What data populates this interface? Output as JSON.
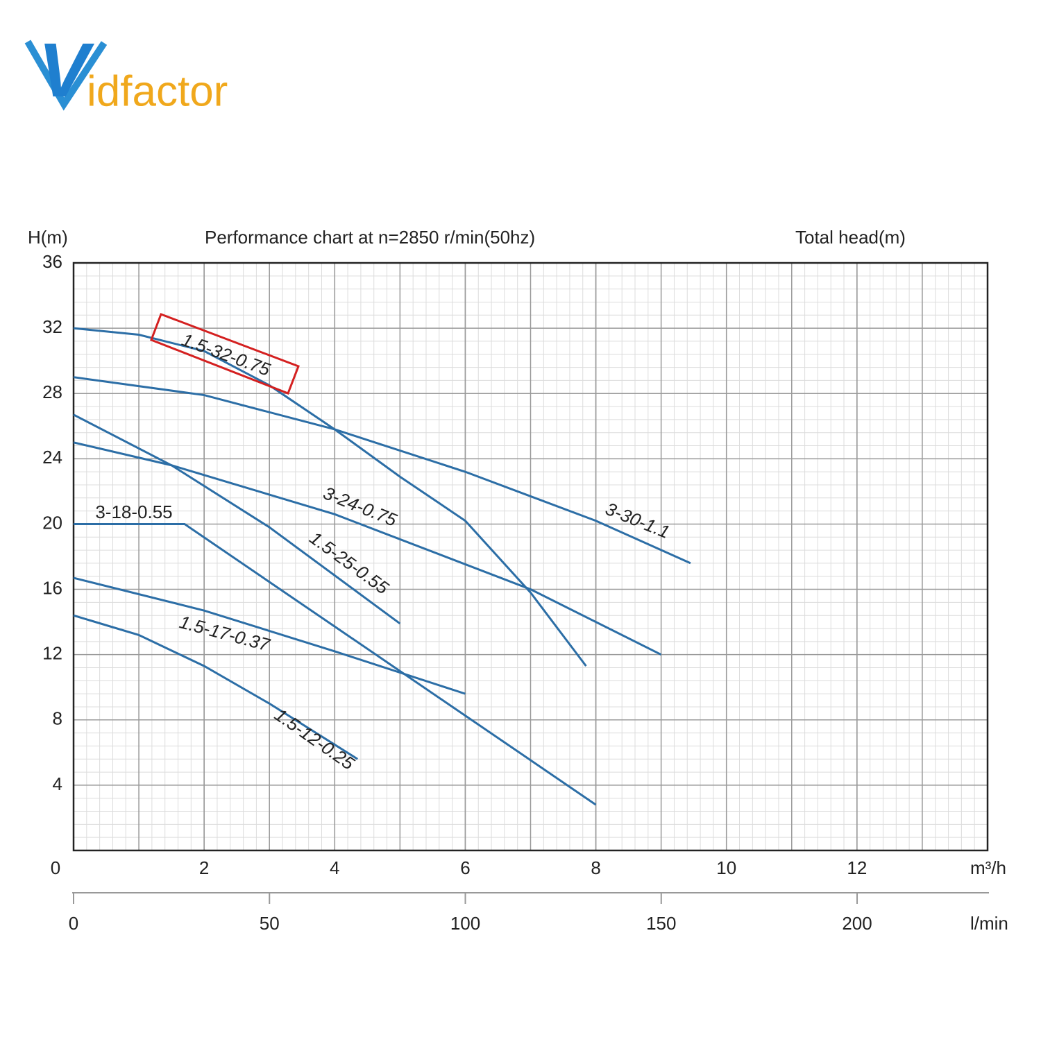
{
  "logo": {
    "initial": "V",
    "rest": "idfactor"
  },
  "chart_data": {
    "type": "line",
    "title": "Performance chart at n=2850 r/min(50hz)",
    "y_label": "H(m)",
    "right_label": "Total head(m)",
    "x_label": "m³/h",
    "x2_label": "l/min",
    "xlim": [
      0,
      14
    ],
    "xticks": [
      0,
      2,
      4,
      6,
      8,
      10,
      12
    ],
    "x2lim": [
      0,
      233.3
    ],
    "x2ticks": [
      0,
      50,
      100,
      150,
      200
    ],
    "ylim": [
      0,
      36
    ],
    "yticks": [
      4,
      8,
      12,
      16,
      20,
      24,
      28,
      32,
      36
    ],
    "grid": true,
    "series": [
      {
        "name": "1.5-32-0.75",
        "color": "#2c6ea6",
        "x": [
          0,
          1,
          2,
          3,
          4,
          5,
          6,
          7,
          7.85
        ],
        "values": [
          32,
          31.6,
          30.6,
          28.5,
          25.8,
          22.9,
          20.2,
          15.8,
          11.3
        ]
      },
      {
        "name": "3-30-1.1",
        "color": "#2c6ea6",
        "x": [
          0,
          2,
          4,
          6,
          8,
          9.45
        ],
        "values": [
          29,
          27.9,
          25.8,
          23.2,
          20.2,
          17.6
        ]
      },
      {
        "name": "3-24-0.75",
        "color": "#2c6ea6",
        "x": [
          0,
          1.5,
          4,
          7,
          9
        ],
        "values": [
          25,
          23.6,
          20.6,
          16,
          12
        ]
      },
      {
        "name": "1.5-25-0.55",
        "color": "#2c6ea6",
        "x": [
          0,
          1.5,
          3,
          5
        ],
        "values": [
          26.7,
          23.6,
          19.8,
          13.9
        ]
      },
      {
        "name": "3-18-0.55",
        "color": "#2c6ea6",
        "x": [
          0,
          1.7,
          8
        ],
        "values": [
          20,
          20,
          2.8
        ]
      },
      {
        "name": "1.5-17-0.37",
        "color": "#2c6ea6",
        "x": [
          0,
          2,
          4,
          6
        ],
        "values": [
          16.7,
          14.7,
          12.2,
          9.6
        ]
      },
      {
        "name": "1.5-12-0.25",
        "color": "#2c6ea6",
        "x": [
          0,
          1,
          2,
          3,
          4.35
        ],
        "values": [
          14.4,
          13.2,
          11.3,
          9.0,
          5.6
        ]
      }
    ]
  }
}
